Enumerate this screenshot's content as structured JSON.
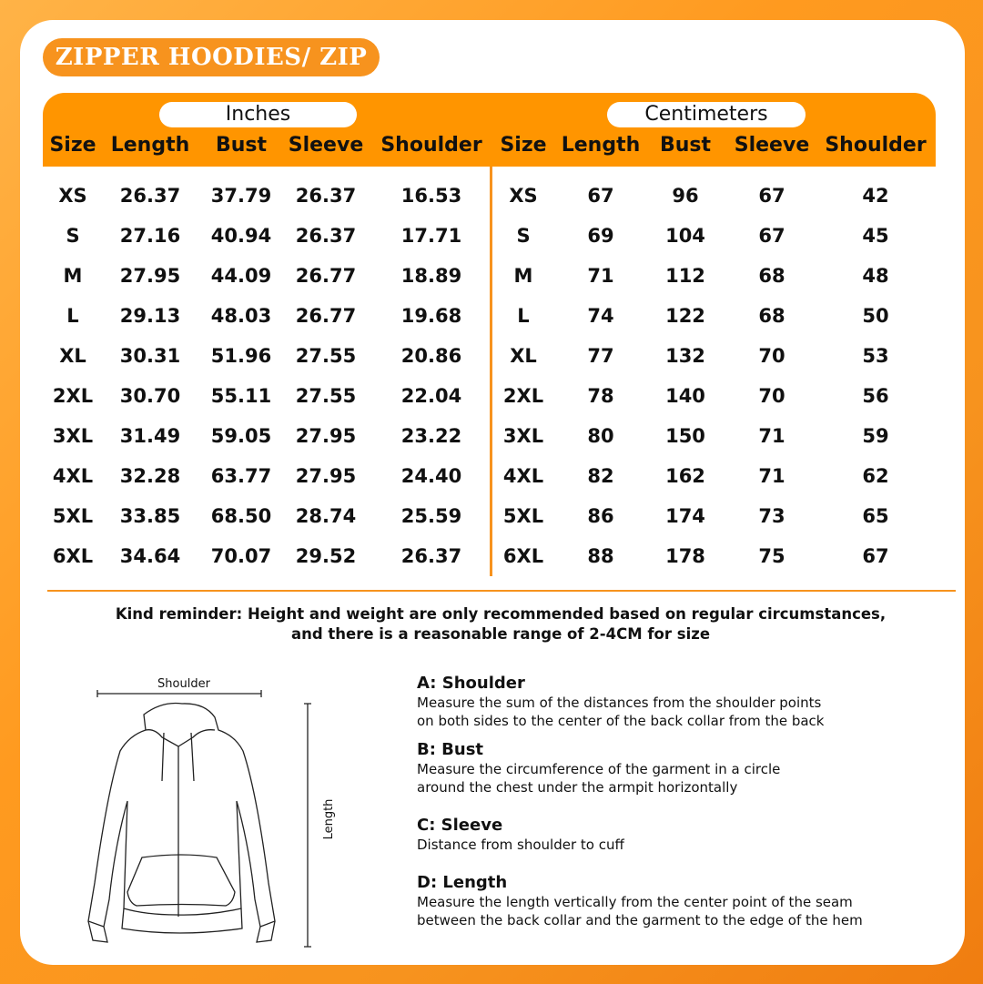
{
  "title": "ZIPPER HOODIES/ ZIP",
  "units": {
    "inches": "Inches",
    "centimeters": "Centimeters"
  },
  "columns": [
    "Size",
    "Length",
    "Bust",
    "Sleeve",
    "Shoulder"
  ],
  "rows_inches": [
    [
      "XS",
      "26.37",
      "37.79",
      "26.37",
      "16.53"
    ],
    [
      "S",
      "27.16",
      "40.94",
      "26.37",
      "17.71"
    ],
    [
      "M",
      "27.95",
      "44.09",
      "26.77",
      "18.89"
    ],
    [
      "L",
      "29.13",
      "48.03",
      "26.77",
      "19.68"
    ],
    [
      "XL",
      "30.31",
      "51.96",
      "27.55",
      "20.86"
    ],
    [
      "2XL",
      "30.70",
      "55.11",
      "27.55",
      "22.04"
    ],
    [
      "3XL",
      "31.49",
      "59.05",
      "27.95",
      "23.22"
    ],
    [
      "4XL",
      "32.28",
      "63.77",
      "27.95",
      "24.40"
    ],
    [
      "5XL",
      "33.85",
      "68.50",
      "28.74",
      "25.59"
    ],
    [
      "6XL",
      "34.64",
      "70.07",
      "29.52",
      "26.37"
    ]
  ],
  "rows_cm": [
    [
      "XS",
      "67",
      "96",
      "67",
      "42"
    ],
    [
      "S",
      "69",
      "104",
      "67",
      "45"
    ],
    [
      "M",
      "71",
      "112",
      "68",
      "48"
    ],
    [
      "L",
      "74",
      "122",
      "68",
      "50"
    ],
    [
      "XL",
      "77",
      "132",
      "70",
      "53"
    ],
    [
      "2XL",
      "78",
      "140",
      "70",
      "56"
    ],
    [
      "3XL",
      "80",
      "150",
      "71",
      "59"
    ],
    [
      "4XL",
      "82",
      "162",
      "71",
      "62"
    ],
    [
      "5XL",
      "86",
      "174",
      "73",
      "65"
    ],
    [
      "6XL",
      "88",
      "178",
      "75",
      "67"
    ]
  ],
  "reminder": {
    "line1": "Kind reminder: Height and weight are only recommended based on regular circumstances,",
    "line2": "and there is a reasonable range of 2-4CM for size"
  },
  "diagram": {
    "shoulder_label": "Shoulder",
    "length_label": "Length"
  },
  "measurements": [
    {
      "title": "A: Shoulder",
      "line1": "Measure the sum of the distances from the shoulder points",
      "line2": "on both sides to the center of the back collar from the back"
    },
    {
      "title": "B: Bust",
      "line1": "Measure the circumference of the garment in a circle",
      "line2": "around the chest under the armpit horizontally"
    },
    {
      "title": "C: Sleeve",
      "line1": "Distance from shoulder to cuff",
      "line2": ""
    },
    {
      "title": "D: Length",
      "line1": "Measure the length vertically from the center point of the seam",
      "line2": "between the back collar and the garment to the edge of the hem"
    }
  ],
  "colors": {
    "accent": "#f7931e",
    "header": "#ff9500"
  }
}
